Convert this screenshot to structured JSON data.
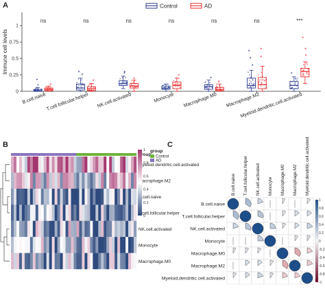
{
  "panels": {
    "a": "A",
    "b": "B",
    "c": "C"
  },
  "chart_data": [
    {
      "type": "box",
      "ylabel": "Immune cell levels",
      "ylim": [
        0,
        1.2
      ],
      "yticks": [
        0,
        0.25,
        0.5,
        0.75,
        1
      ],
      "legend": {
        "placement": "top-right",
        "entries": [
          "Control",
          "AD"
        ]
      },
      "colors": {
        "Control": "#2b3a91",
        "AD": "#e8292b"
      },
      "categories": [
        "B.cell.naive",
        "T.cell.follicular.helper",
        "NK.cell.activated",
        "Monocyte",
        "Macrophage.M0",
        "Macrophage.M2",
        "Myeloid.dendritic.cell.activated"
      ],
      "significance": [
        "ns",
        "ns",
        "ns",
        "ns",
        "ns",
        "ns",
        "***"
      ],
      "series": [
        {
          "name": "Control",
          "boxes": [
            {
              "min": 0.0,
              "q1": 0.0,
              "median": 0.01,
              "q3": 0.03,
              "max": 0.06,
              "outliers": [
                0.1,
                0.18
              ]
            },
            {
              "min": 0.0,
              "q1": 0.02,
              "median": 0.05,
              "q3": 0.11,
              "max": 0.2,
              "outliers": [
                0.26,
                0.3
              ]
            },
            {
              "min": 0.04,
              "q1": 0.09,
              "median": 0.12,
              "q3": 0.16,
              "max": 0.23,
              "outliers": [
                0.28,
                0.3
              ]
            },
            {
              "min": 0.0,
              "q1": 0.03,
              "median": 0.05,
              "q3": 0.08,
              "max": 0.11,
              "outliers": []
            },
            {
              "min": 0.0,
              "q1": 0.03,
              "median": 0.07,
              "q3": 0.1,
              "max": 0.17,
              "outliers": [
                0.21
              ]
            },
            {
              "min": 0.0,
              "q1": 0.05,
              "median": 0.09,
              "q3": 0.2,
              "max": 0.32,
              "outliers": [
                0.4,
                0.51,
                0.62
              ]
            },
            {
              "min": 0.0,
              "q1": 0.04,
              "median": 0.09,
              "q3": 0.15,
              "max": 0.22,
              "outliers": [
                0.28
              ]
            }
          ]
        },
        {
          "name": "AD",
          "boxes": [
            {
              "min": 0.0,
              "q1": 0.01,
              "median": 0.03,
              "q3": 0.05,
              "max": 0.08,
              "outliers": [
                0.11
              ]
            },
            {
              "min": 0.0,
              "q1": 0.01,
              "median": 0.04,
              "q3": 0.07,
              "max": 0.12,
              "outliers": [
                0.17
              ]
            },
            {
              "min": 0.0,
              "q1": 0.05,
              "median": 0.08,
              "q3": 0.12,
              "max": 0.17,
              "outliers": [
                0.2
              ]
            },
            {
              "min": 0.0,
              "q1": 0.04,
              "median": 0.09,
              "q3": 0.14,
              "max": 0.2,
              "outliers": [
                0.25
              ]
            },
            {
              "min": 0.0,
              "q1": 0.01,
              "median": 0.03,
              "q3": 0.06,
              "max": 0.11,
              "outliers": [
                0.15
              ]
            },
            {
              "min": 0.0,
              "q1": 0.04,
              "median": 0.1,
              "q3": 0.21,
              "max": 0.38,
              "outliers": [
                0.53,
                0.65
              ]
            },
            {
              "min": 0.12,
              "q1": 0.22,
              "median": 0.3,
              "q3": 0.35,
              "max": 0.45,
              "outliers": [
                0.55,
                0.65,
                0.82
              ]
            }
          ]
        }
      ]
    },
    {
      "type": "heatmap",
      "legend_title": "group",
      "legend_entries": [
        "Control",
        "AD"
      ],
      "group_colors": {
        "Control": "#6fb339",
        "AD": "#8a73be"
      },
      "colorscale": {
        "min": 0,
        "max": 1,
        "ticks": [
          "1",
          "0.8",
          "0.6",
          "0.4",
          "0.2",
          "0"
        ],
        "low": "#2e4a7d",
        "mid": "#ffffff",
        "high": "#a4366e"
      },
      "rows": [
        "Myeloid.dendritic.cell.activated",
        "Macrophage.M2",
        "B.cell.naive",
        "T.cell.follicular.helper",
        "NK.cell.activated",
        "Monocyte",
        "Macrophage.M0"
      ],
      "column_groups": {
        "AD": 24,
        "Control": 22
      }
    },
    {
      "type": "heatmap",
      "labels": [
        "B.cell.naive",
        "T.cell.follicular.helper",
        "NK.cell.activated",
        "Monocyte",
        "Macrophage.M0",
        "Macrophage.M2",
        "Myeloid.dendritic.cell.activated"
      ],
      "colorbar_ticks": [
        "1",
        "0.8",
        "0.6",
        "0.4",
        "0.2",
        "0",
        "-0.2",
        "-0.4",
        "-0.6",
        "-0.8",
        "-1"
      ],
      "matrix": [
        [
          1.0,
          0.35,
          0.2,
          0.05,
          0.08,
          0.05,
          0.1
        ],
        [
          0.35,
          1.0,
          0.3,
          0.05,
          0.1,
          0.15,
          0.15
        ],
        [
          0.2,
          0.3,
          1.0,
          0.25,
          0.1,
          0.15,
          0.2
        ],
        [
          0.05,
          0.05,
          0.25,
          1.0,
          0.05,
          0.1,
          0.1
        ],
        [
          0.08,
          0.1,
          0.1,
          0.05,
          1.0,
          -0.35,
          -0.2
        ],
        [
          0.05,
          0.15,
          0.15,
          0.1,
          -0.35,
          1.0,
          -0.2
        ],
        [
          0.1,
          0.15,
          0.2,
          0.1,
          -0.2,
          -0.2,
          1.0
        ]
      ]
    }
  ]
}
